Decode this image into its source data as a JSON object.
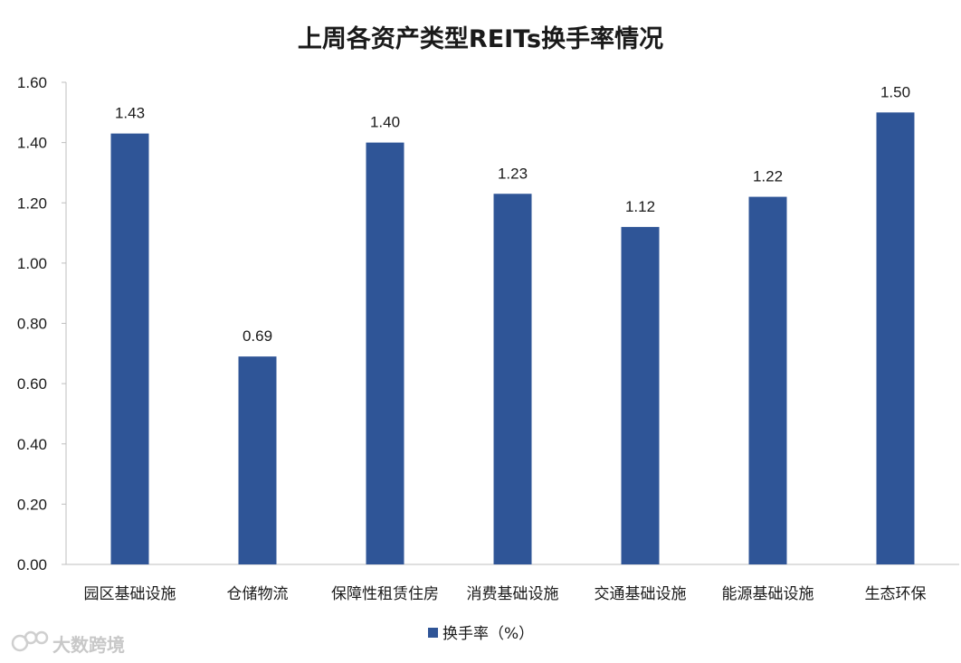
{
  "chart_data": {
    "type": "bar",
    "title": "上周各资产类型REITs换手率情况",
    "categories": [
      "园区基础设施",
      "仓储物流",
      "保障性租赁住房",
      "消费基础设施",
      "交通基础设施",
      "能源基础设施",
      "生态环保"
    ],
    "series": [
      {
        "name": "换手率（%）",
        "values": [
          1.43,
          0.69,
          1.4,
          1.23,
          1.12,
          1.22,
          1.5
        ],
        "data_labels": [
          "1.43",
          "0.69",
          "1.40",
          "1.23",
          "1.12",
          "1.22",
          "1.50"
        ],
        "color": "#2F5597"
      }
    ],
    "ylim": [
      0,
      1.6
    ],
    "yticks": [
      0,
      0.2,
      0.4,
      0.6,
      0.8,
      1.0,
      1.2,
      1.4,
      1.6
    ],
    "ytick_labels": [
      "0.00",
      "0.20",
      "0.40",
      "0.60",
      "0.80",
      "1.00",
      "1.20",
      "1.40",
      "1.60"
    ],
    "xlabel": "",
    "ylabel": "",
    "grid": false,
    "legend_position": "bottom"
  },
  "watermark": {
    "text": "大数跨境"
  },
  "colors": {
    "bar": "#2F5597",
    "axis": "#bfbfbf",
    "watermark": "#c8c8c8"
  }
}
